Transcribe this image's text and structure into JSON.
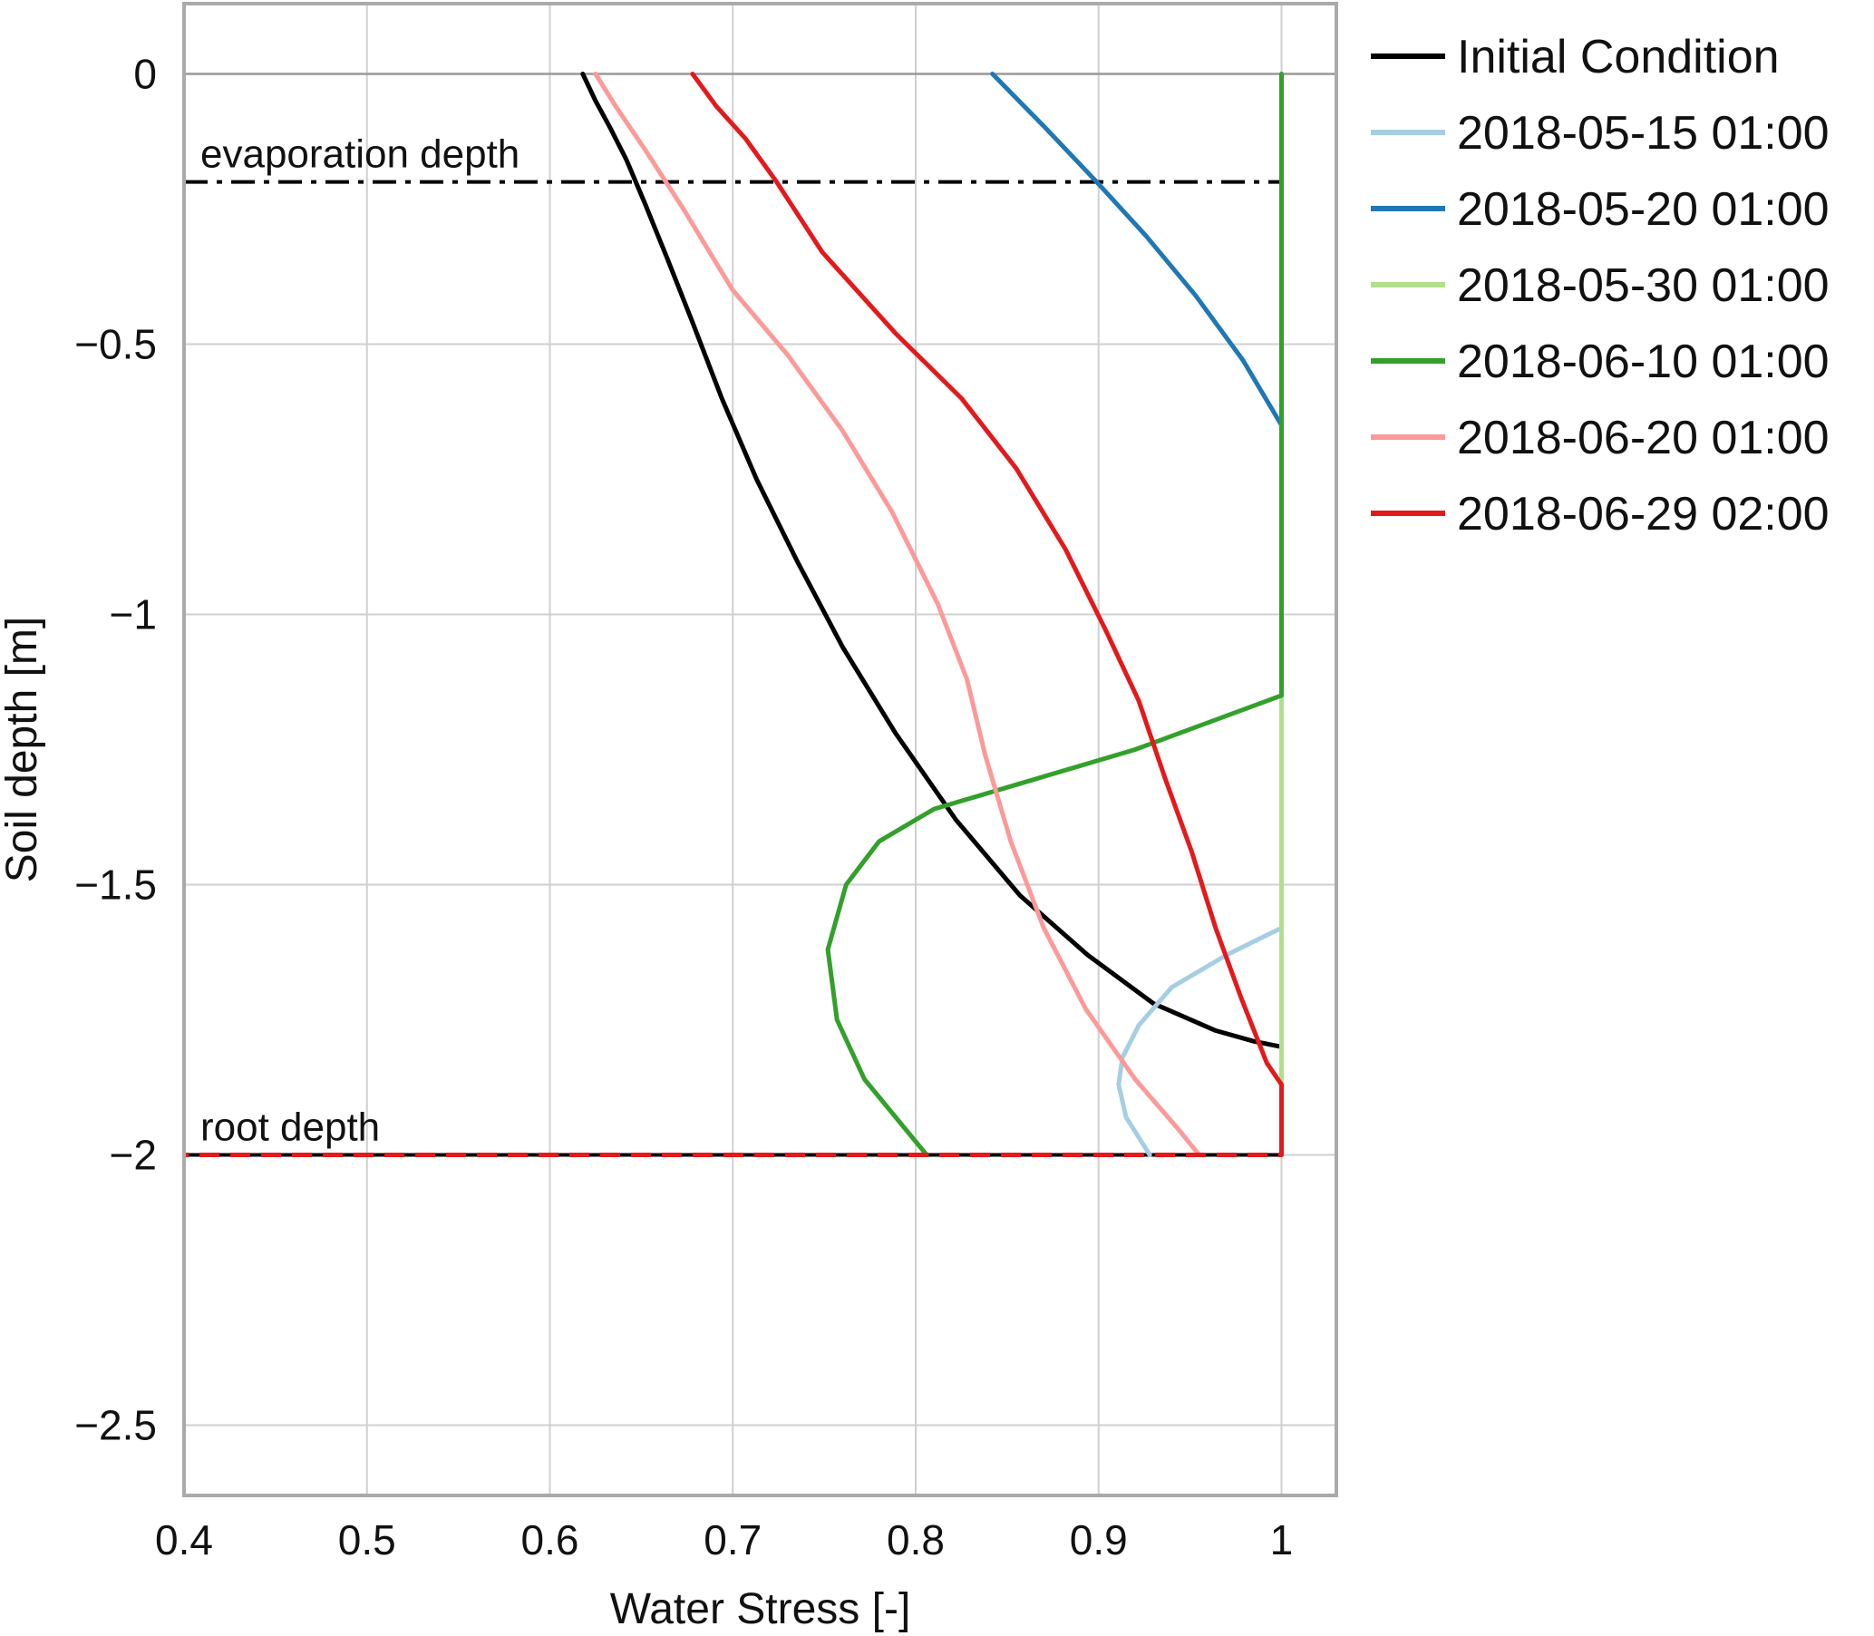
{
  "chart_data": {
    "type": "line",
    "xlabel": "Water Stress [-]",
    "ylabel": "Soil depth [m]",
    "xlim": [
      0.4,
      1.03
    ],
    "ylim": [
      -2.63,
      0.13
    ],
    "x_ticks": [
      "0.4",
      "0.5",
      "0.6",
      "0.7",
      "0.8",
      "0.9",
      "1"
    ],
    "y_ticks": [
      "0",
      "−0.5",
      "−1",
      "−1.5",
      "−2",
      "−2.5"
    ],
    "grid": true,
    "legend_position": "outside-right",
    "reference_lines": [
      {
        "label": "evaporation depth",
        "y": -0.2,
        "style": "dash-dot",
        "color": "#000000"
      },
      {
        "label": "root depth",
        "y": -2.0,
        "style": "dashed",
        "color": "#000000"
      }
    ],
    "series": [
      {
        "name": "Initial Condition",
        "color": "#000000",
        "x": [
          0.618,
          0.625,
          0.633,
          0.642,
          0.652,
          0.664,
          0.678,
          0.694,
          0.713,
          0.735,
          0.76,
          0.789,
          0.822,
          0.857,
          0.894,
          0.93,
          0.964,
          0.985,
          1.0,
          1.0,
          1.0
        ],
        "y": [
          0.0,
          -0.05,
          -0.1,
          -0.16,
          -0.24,
          -0.34,
          -0.46,
          -0.6,
          -0.75,
          -0.9,
          -1.06,
          -1.22,
          -1.38,
          -1.52,
          -1.63,
          -1.72,
          -1.77,
          -1.79,
          -1.8,
          -1.9,
          -2.0
        ]
      },
      {
        "name": "2018-05-15 01:00",
        "color": "#a6cee3",
        "x": [
          1.0,
          1.0,
          0.97,
          0.94,
          0.922,
          0.913,
          0.911,
          0.915,
          0.928
        ],
        "y": [
          -1.57,
          -1.58,
          -1.63,
          -1.69,
          -1.76,
          -1.82,
          -1.87,
          -1.93,
          -2.0
        ]
      },
      {
        "name": "2018-05-20 01:00",
        "color": "#1f78b4",
        "x": [
          0.842,
          0.871,
          0.899,
          0.926,
          0.953,
          0.979,
          1.0,
          1.0
        ],
        "y": [
          0.0,
          -0.1,
          -0.2,
          -0.3,
          -0.41,
          -0.53,
          -0.65,
          -0.67
        ]
      },
      {
        "name": "2018-05-30 01:00",
        "color": "#b2df8a",
        "x": [
          1.0,
          1.0
        ],
        "y": [
          -1.15,
          -2.0
        ]
      },
      {
        "name": "2018-06-10 01:00",
        "color": "#33a02c",
        "x": [
          1.0,
          1.0,
          0.92,
          0.86,
          0.81,
          0.78,
          0.762,
          0.752,
          0.757,
          0.772,
          0.806
        ],
        "y": [
          0.0,
          -1.15,
          -1.25,
          -1.31,
          -1.36,
          -1.42,
          -1.5,
          -1.62,
          -1.75,
          -1.86,
          -2.0
        ]
      },
      {
        "name": "2018-06-20 01:00",
        "color": "#fb9a99",
        "x": [
          0.625,
          0.636,
          0.652,
          0.673,
          0.7,
          0.73,
          0.76,
          0.787,
          0.812,
          0.828,
          0.838,
          0.852,
          0.87,
          0.893,
          0.92,
          0.943,
          0.955
        ],
        "y": [
          0.0,
          -0.06,
          -0.14,
          -0.25,
          -0.4,
          -0.52,
          -0.66,
          -0.81,
          -0.98,
          -1.12,
          -1.26,
          -1.42,
          -1.58,
          -1.73,
          -1.86,
          -1.95,
          -2.0
        ]
      },
      {
        "name": "2018-06-29 02:00",
        "color": "#e31a1c",
        "x": [
          0.678,
          0.691,
          0.707,
          0.724,
          0.749,
          0.789,
          0.825,
          0.855,
          0.882,
          0.904,
          0.922,
          0.936,
          0.951,
          0.964,
          0.978,
          0.992,
          1.0,
          1.0
        ],
        "y": [
          0.0,
          -0.06,
          -0.12,
          -0.2,
          -0.33,
          -0.48,
          -0.6,
          -0.73,
          -0.88,
          -1.03,
          -1.16,
          -1.3,
          -1.44,
          -1.58,
          -1.71,
          -1.83,
          -1.87,
          -2.0
        ]
      }
    ]
  }
}
